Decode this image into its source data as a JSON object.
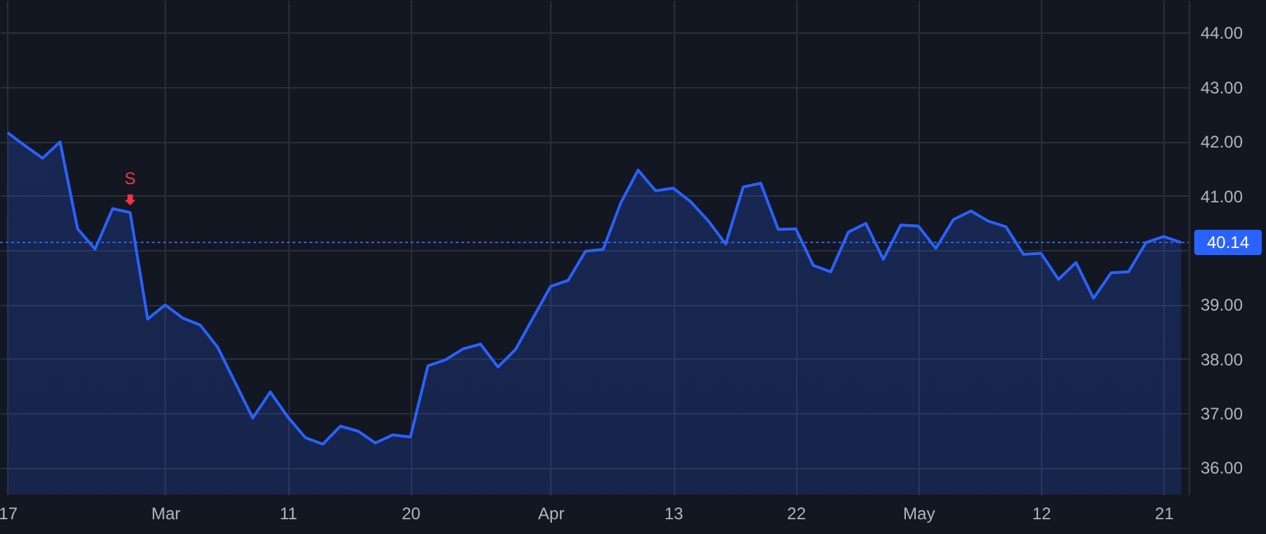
{
  "chart_data": {
    "type": "area",
    "categories": [
      "17",
      null,
      null,
      null,
      null,
      null,
      null,
      null,
      null,
      "Mar",
      null,
      null,
      null,
      null,
      null,
      null,
      "11",
      null,
      null,
      null,
      null,
      null,
      null,
      "20",
      null,
      null,
      null,
      null,
      null,
      null,
      null,
      "Apr",
      null,
      null,
      null,
      null,
      null,
      null,
      "13",
      null,
      null,
      null,
      null,
      null,
      null,
      "22",
      null,
      null,
      null,
      null,
      null,
      null,
      "May",
      null,
      null,
      null,
      null,
      null,
      null,
      "12",
      null,
      null,
      null,
      null,
      null,
      null,
      "21",
      null
    ],
    "series": [
      {
        "color": "#2962ff",
        "values": [
          42.16,
          41.92,
          41.69,
          41.99,
          40.39,
          40.02,
          40.76,
          40.69,
          38.73,
          38.99,
          38.75,
          38.62,
          38.21,
          37.56,
          36.91,
          37.39,
          36.93,
          36.55,
          36.43,
          36.76,
          36.67,
          36.45,
          36.6,
          36.56,
          37.87,
          37.98,
          38.18,
          38.27,
          37.85,
          38.17,
          38.75,
          39.33,
          39.44,
          39.98,
          40.01,
          40.86,
          41.47,
          41.09,
          41.14,
          40.89,
          40.54,
          40.11,
          41.16,
          41.23,
          40.38,
          40.39,
          39.72,
          39.6,
          40.33,
          40.49,
          39.83,
          40.46,
          40.44,
          40.03,
          40.56,
          40.72,
          40.53,
          40.43,
          39.92,
          39.94,
          39.46,
          39.77,
          39.11,
          39.58,
          39.6,
          40.14,
          40.25,
          40.14
        ]
      }
    ],
    "ylim": [
      35.5,
      44.6
    ],
    "yticks": [
      {
        "value": 36,
        "label": "36.00"
      },
      {
        "value": 37,
        "label": "37.00"
      },
      {
        "value": 38,
        "label": "38.00"
      },
      {
        "value": 39,
        "label": "39.00"
      },
      {
        "value": 40,
        "label": null
      },
      {
        "value": 41,
        "label": "41.00"
      },
      {
        "value": 42,
        "label": "42.00"
      },
      {
        "value": 43,
        "label": "43.00"
      },
      {
        "value": 44,
        "label": "44.00"
      }
    ],
    "ref_lines": [
      {
        "axis": "y",
        "value": 40.14,
        "label": "40.14",
        "color": "#2962ff",
        "line_style": "dotted"
      }
    ],
    "annotations": [
      {
        "text": "S",
        "y": 40.69
      }
    ],
    "grid": true
  }
}
